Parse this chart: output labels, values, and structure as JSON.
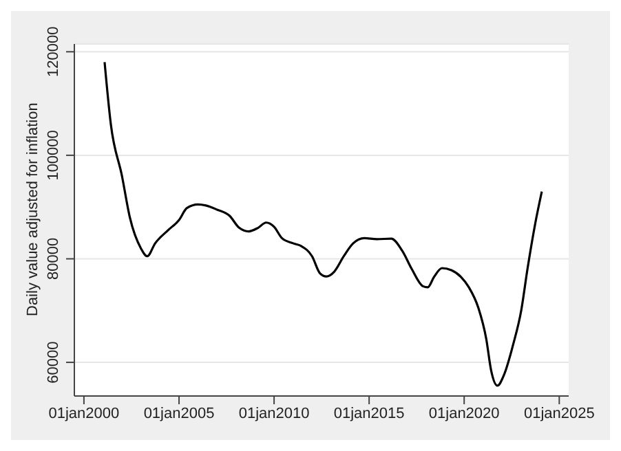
{
  "chart_data": {
    "type": "line",
    "ylabel": "Daily value adjusted for inflation",
    "x": [
      "2001-02",
      "2001-06",
      "2002-01",
      "2002-06",
      "2003-01",
      "2003-05",
      "2003-10",
      "2004-06",
      "2005-01",
      "2005-06",
      "2006-01",
      "2006-06",
      "2007-01",
      "2007-09",
      "2008-03",
      "2008-09",
      "2009-03",
      "2009-08",
      "2010-01",
      "2010-06",
      "2011-01",
      "2011-06",
      "2012-01",
      "2012-06",
      "2012-10",
      "2013-03",
      "2013-09",
      "2014-03",
      "2014-10",
      "2015-06",
      "2016-03",
      "2016-10",
      "2017-04",
      "2017-11",
      "2018-02",
      "2018-06",
      "2018-11",
      "2019-05",
      "2019-11",
      "2020-04",
      "2020-10",
      "2021-03",
      "2021-06",
      "2021-10",
      "2022-02",
      "2022-08",
      "2023-01",
      "2023-05",
      "2023-10",
      "2024-02"
    ],
    "series": [
      {
        "color": "#000000",
        "values": [
          118000,
          106000,
          96000,
          88000,
          82000,
          80500,
          83000,
          85500,
          87500,
          89800,
          90500,
          90300,
          89500,
          88300,
          86000,
          85300,
          86000,
          87000,
          86200,
          84000,
          83000,
          82500,
          80500,
          77200,
          76600,
          77500,
          80500,
          83000,
          84000,
          83800,
          83900,
          81500,
          78000,
          74700,
          74500,
          76500,
          78200,
          77800,
          76500,
          74500,
          70500,
          64500,
          58500,
          55500,
          57500,
          63500,
          70000,
          78000,
          87000,
          93000
        ]
      }
    ],
    "xlim": [
      "1999-07",
      "2025-07"
    ],
    "xticks": [
      {
        "value": "2000-01-01",
        "label": "01jan2000"
      },
      {
        "value": "2005-01-01",
        "label": "01jan2005"
      },
      {
        "value": "2010-01-01",
        "label": "01jan2010"
      },
      {
        "value": "2015-01-01",
        "label": "01jan2015"
      },
      {
        "value": "2020-01-01",
        "label": "01jan2020"
      },
      {
        "value": "2025-01-01",
        "label": "01jan2025"
      }
    ],
    "ylim": [
      53500,
      121500
    ],
    "yticks": [
      60000,
      80000,
      100000,
      120000
    ],
    "grid": "y",
    "marker": "none",
    "line_style": "solid"
  }
}
